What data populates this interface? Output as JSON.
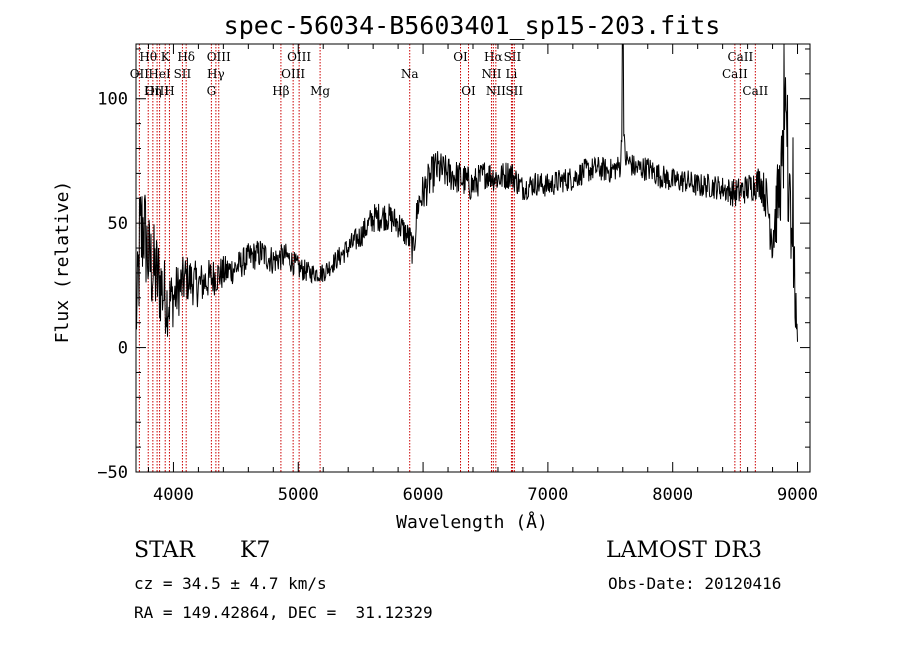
{
  "chart_data": {
    "type": "line",
    "title": "spec-56034-B5603401_sp15-203.fits",
    "xlabel": "Wavelength (Å)",
    "ylabel": "Flux (relative)",
    "xlim": [
      3700,
      9100
    ],
    "ylim": [
      -50,
      122
    ],
    "x_ticks": [
      4000,
      5000,
      6000,
      7000,
      8000,
      9000
    ],
    "x_tick_labels": [
      "4000",
      "5000",
      "6000",
      "7000",
      "8000",
      "9000"
    ],
    "y_ticks": [
      -50,
      0,
      50,
      100
    ],
    "y_tick_labels": [
      "−50",
      "0",
      "50",
      "100"
    ],
    "grid": false,
    "spectrum_anchor_points": {
      "x": [
        3700,
        3730,
        3760,
        3800,
        3850,
        3900,
        3950,
        4000,
        4100,
        4200,
        4300,
        4400,
        4500,
        4600,
        4700,
        4800,
        4900,
        5000,
        5100,
        5200,
        5300,
        5400,
        5500,
        5600,
        5700,
        5800,
        5900,
        5920,
        5960,
        6000,
        6050,
        6100,
        6200,
        6300,
        6400,
        6500,
        6600,
        6700,
        6800,
        6900,
        7000,
        7100,
        7200,
        7300,
        7400,
        7500,
        7580,
        7600,
        7620,
        7700,
        7800,
        7900,
        8000,
        8100,
        8200,
        8300,
        8400,
        8500,
        8600,
        8700,
        8750,
        8800,
        8850,
        8900,
        8950,
        9000
      ],
      "y": [
        8,
        40,
        50,
        35,
        30,
        25,
        18,
        20,
        28,
        25,
        28,
        30,
        32,
        36,
        38,
        35,
        37,
        32,
        30,
        30,
        35,
        40,
        45,
        52,
        53,
        50,
        43,
        38,
        58,
        62,
        67,
        72,
        70,
        68,
        65,
        70,
        68,
        70,
        64,
        66,
        65,
        67,
        68,
        71,
        72,
        71,
        73,
        90,
        76,
        72,
        72,
        69,
        67,
        67,
        65,
        65,
        64,
        62,
        64,
        67,
        60,
        45,
        62,
        80,
        55,
        0
      ],
      "noise": [
        10,
        30,
        22,
        20,
        20,
        18,
        14,
        12,
        10,
        9,
        8,
        7,
        6,
        6,
        6,
        6,
        5,
        5,
        4,
        4,
        4,
        5,
        5,
        6,
        6,
        6,
        6,
        7,
        8,
        8,
        8,
        8,
        7,
        7,
        7,
        6,
        6,
        6,
        5,
        5,
        5,
        5,
        5,
        5,
        5,
        5,
        5,
        5,
        5,
        5,
        5,
        5,
        5,
        5,
        5,
        5,
        5,
        6,
        6,
        7,
        9,
        14,
        16,
        20,
        25,
        5
      ]
    },
    "line_features": [
      {
        "name": "Hθ",
        "wavelength": 3798,
        "label": "Hθ",
        "row": 0
      },
      {
        "name": "OII",
        "wavelength": 3727,
        "label": "OII",
        "row": 1
      },
      {
        "name": "OIII",
        "wavelength": 3869,
        "label": "OIII",
        "row": 2
      },
      {
        "name": "K",
        "wavelength": 3934,
        "label": "K",
        "row": 0
      },
      {
        "name": "HeI",
        "wavelength": 3889,
        "label": "HeI",
        "row": 1
      },
      {
        "name": "Hη",
        "wavelength": 3835,
        "label": "Hη",
        "row": 2
      },
      {
        "name": "SII",
        "wavelength": 4072,
        "label": "SII",
        "row": 1
      },
      {
        "name": "H",
        "wavelength": 3968,
        "label": "H",
        "row": 2
      },
      {
        "name": "Hδ",
        "wavelength": 4102,
        "label": "Hδ",
        "row": 0
      },
      {
        "name": "OIII",
        "wavelength": 4363,
        "label": "OIII",
        "row": 0
      },
      {
        "name": "Hγ",
        "wavelength": 4340,
        "label": "Hγ",
        "row": 1
      },
      {
        "name": "G",
        "wavelength": 4304,
        "label": "G",
        "row": 2
      },
      {
        "name": "Hβ",
        "wavelength": 4861,
        "label": "Hβ",
        "row": 2
      },
      {
        "name": "OIII",
        "wavelength": 5007,
        "label": "OIII",
        "row": 0
      },
      {
        "name": "OIII",
        "wavelength": 4959,
        "label": "OIII",
        "row": 1
      },
      {
        "name": "Mg",
        "wavelength": 5175,
        "label": "Mg",
        "row": 2
      },
      {
        "name": "Na",
        "wavelength": 5893,
        "label": "Na",
        "row": 1
      },
      {
        "name": "OI",
        "wavelength": 6300,
        "label": "OI",
        "row": 0
      },
      {
        "name": "OI",
        "wavelength": 6364,
        "label": "OI",
        "row": 2
      },
      {
        "name": "Hα",
        "wavelength": 6563,
        "label": "Hα",
        "row": 0
      },
      {
        "name": "NII",
        "wavelength": 6548,
        "label": "NII",
        "row": 1
      },
      {
        "name": "NII",
        "wavelength": 6583,
        "label": "NII",
        "row": 2
      },
      {
        "name": "SII",
        "wavelength": 6716,
        "label": "SII",
        "row": 0
      },
      {
        "name": "Li",
        "wavelength": 6708,
        "label": "Li",
        "row": 1
      },
      {
        "name": "SII",
        "wavelength": 6731,
        "label": "SII",
        "row": 2
      },
      {
        "name": "CaII",
        "wavelength": 8542,
        "label": "CaII",
        "row": 0
      },
      {
        "name": "CaII",
        "wavelength": 8498,
        "label": "CaII",
        "row": 1
      },
      {
        "name": "CaII",
        "wavelength": 8662,
        "label": "CaII",
        "row": 2
      }
    ],
    "line_color": "#000000",
    "feature_line_color": "#cc0000"
  },
  "info": {
    "object_class": "STAR",
    "subclass": "K7",
    "survey": "LAMOST DR3",
    "redshift": "cz = 34.5 ± 4.7 km/s",
    "obs_date": "Obs-Date: 20120416",
    "coords": "RA = 149.42864, DEC =  31.12329"
  }
}
